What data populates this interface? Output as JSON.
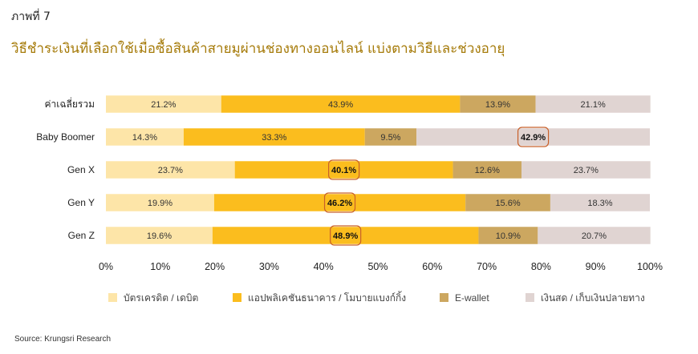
{
  "figure_label": "ภาพที่ 7",
  "title": "วิธีชำระเงินที่เลือกใช้เมื่อซื้อสินค้าสายมูผ่านช่องทางออนไลน์ แบ่งตามวิธีและช่วงอายุ",
  "source": "Source: Krungsri Research",
  "chart_data": {
    "type": "bar",
    "orientation": "horizontal",
    "stacked": true,
    "categories": [
      "ค่าเฉลี่ยรวม",
      "Baby Boomer",
      "Gen X",
      "Gen Y",
      "Gen Z"
    ],
    "series": [
      {
        "name": "บัตรเครดิต / เดบิต",
        "color": "#fde5a8",
        "values": [
          21.2,
          14.3,
          23.7,
          19.9,
          19.6
        ]
      },
      {
        "name": "แอปพลิเคชันธนาคาร / โมบายแบงก์กิ้ง",
        "color": "#fbbd1e",
        "values": [
          43.9,
          33.3,
          40.1,
          46.2,
          48.9
        ]
      },
      {
        "name": "E-wallet",
        "color": "#cca760",
        "values": [
          13.9,
          9.5,
          12.6,
          15.6,
          10.9
        ]
      },
      {
        "name": "เงินสด / เก็บเงินปลายทาง",
        "color": "#e0d4d2",
        "values": [
          21.1,
          42.9,
          23.7,
          18.3,
          20.7
        ]
      }
    ],
    "value_labels": [
      [
        "21.2%",
        "43.9%",
        "13.9%",
        "21.1%"
      ],
      [
        "14.3%",
        "33.3%",
        "9.5%",
        "42.9%"
      ],
      [
        "23.7%",
        "40.1%",
        "12.6%",
        "23.7%"
      ],
      [
        "19.9%",
        "46.2%",
        "15.6%",
        "18.3%"
      ],
      [
        "19.6%",
        "48.9%",
        "10.9%",
        "20.7%"
      ]
    ],
    "highlighted": [
      {
        "category": "Baby Boomer",
        "series": "เงินสด / เก็บเงินปลายทาง"
      },
      {
        "category": "Gen X",
        "series": "แอปพลิเคชันธนาคาร / โมบายแบงก์กิ้ง"
      },
      {
        "category": "Gen Y",
        "series": "แอปพลิเคชันธนาคาร / โมบายแบงก์กิ้ง"
      },
      {
        "category": "Gen Z",
        "series": "แอปพลิเคชันธนาคาร / โมบายแบงก์กิ้ง"
      }
    ],
    "highlight_color": "#c8602a",
    "x_ticks": [
      "0%",
      "10%",
      "20%",
      "30%",
      "40%",
      "50%",
      "60%",
      "70%",
      "80%",
      "90%",
      "100%"
    ],
    "xlim": [
      0,
      100
    ],
    "grid": false,
    "legend_position": "bottom"
  }
}
